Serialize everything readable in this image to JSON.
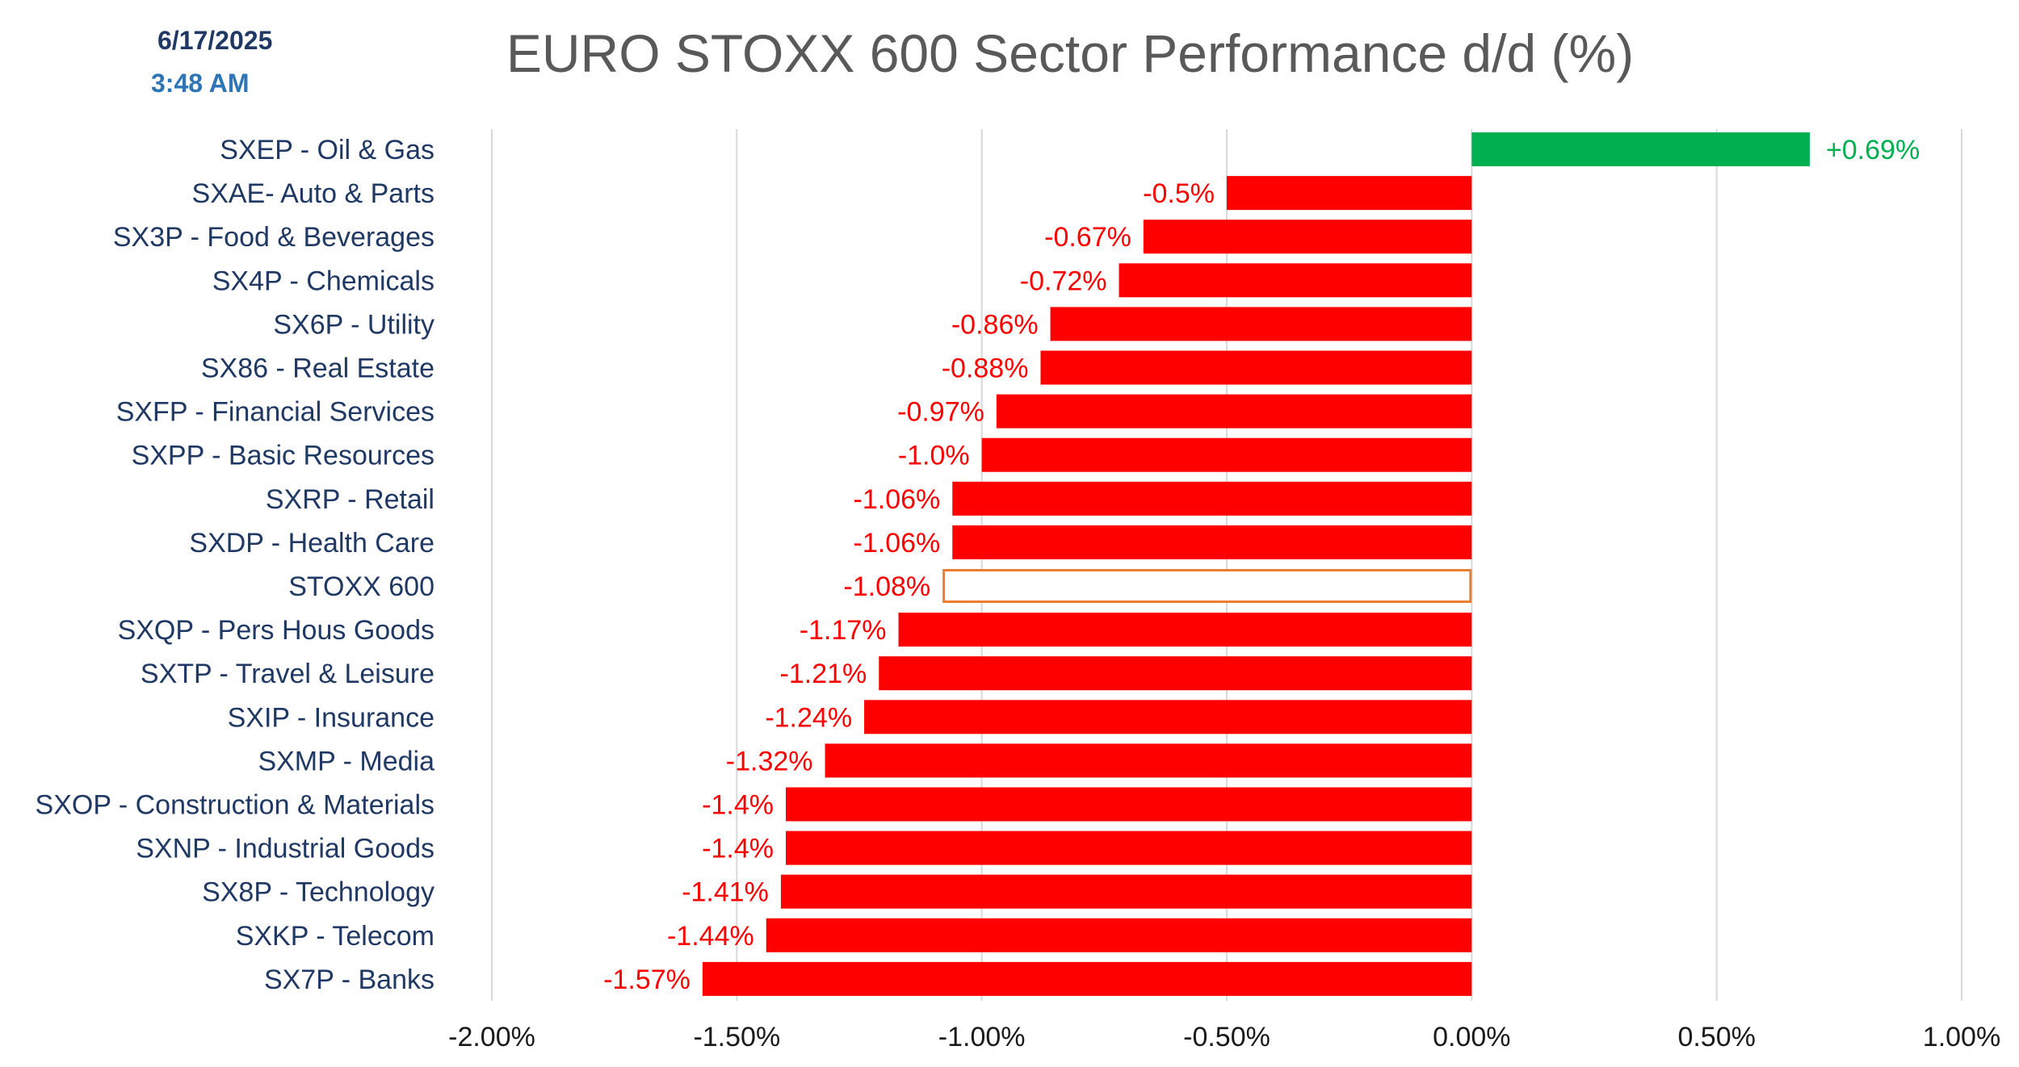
{
  "header": {
    "date": "6/17/2025",
    "time": "3:48 AM"
  },
  "colors": {
    "positive": "#00b050",
    "negative": "#ff0000",
    "highlight_outline": "#ed7d31",
    "label_text": "#1f3864",
    "axis_text": "#1a1a1a",
    "grid": "#d9d9d9"
  },
  "chart_data": {
    "type": "bar",
    "orientation": "horizontal",
    "title": "EURO STOXX  600 Sector Performance d/d (%)",
    "xlabel": "",
    "ylabel": "",
    "xlim": [
      -2.0,
      1.0
    ],
    "x_ticks": [
      -2.0,
      -1.5,
      -1.0,
      -0.5,
      0.0,
      0.5,
      1.0
    ],
    "x_tick_labels": [
      "-2.00%",
      "-1.50%",
      "-1.00%",
      "-0.50%",
      "0.00%",
      "0.50%",
      "1.00%"
    ],
    "grid": "vertical",
    "legend": "none",
    "highlight_category": "STOXX 600",
    "categories": [
      "SXEP - Oil & Gas",
      "SXAE- Auto & Parts",
      "SX3P - Food & Beverages",
      "SX4P - Chemicals",
      "SX6P - Utility",
      "SX86 - Real Estate",
      "SXFP - Financial Services",
      "SXPP - Basic Resources",
      "SXRP - Retail",
      "SXDP - Health Care",
      "STOXX 600",
      "SXQP - Pers Hous Goods",
      "SXTP - Travel & Leisure",
      "SXIP - Insurance",
      "SXMP - Media",
      "SXOP - Construction & Materials",
      "SXNP - Industrial Goods",
      "SX8P - Technology",
      "SXKP - Telecom",
      "SX7P - Banks"
    ],
    "values": [
      0.69,
      -0.5,
      -0.67,
      -0.72,
      -0.86,
      -0.88,
      -0.97,
      -1.0,
      -1.06,
      -1.06,
      -1.08,
      -1.17,
      -1.21,
      -1.24,
      -1.32,
      -1.4,
      -1.4,
      -1.41,
      -1.44,
      -1.57
    ],
    "data_labels": [
      "+0.69%",
      "-0.5%",
      "-0.67%",
      "-0.72%",
      "-0.86%",
      "-0.88%",
      "-0.97%",
      "-1.0%",
      "-1.06%",
      "-1.06%",
      "-1.08%",
      "-1.17%",
      "-1.21%",
      "-1.24%",
      "-1.32%",
      "-1.4%",
      "-1.4%",
      "-1.41%",
      "-1.44%",
      "-1.57%"
    ]
  }
}
